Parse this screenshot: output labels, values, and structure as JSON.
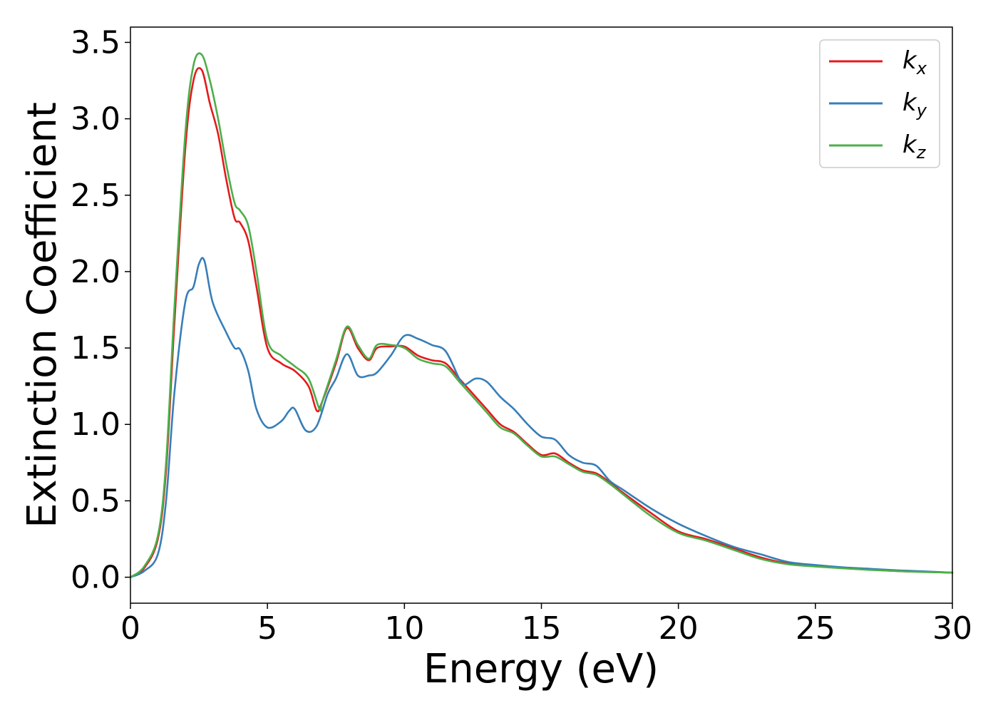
{
  "chart_data": {
    "type": "line",
    "title": "",
    "xlabel": "Energy (eV)",
    "ylabel": "Extinction Coefficient",
    "xlim": [
      0,
      30
    ],
    "ylim": [
      -0.17,
      3.6
    ],
    "xticks": [
      0,
      5,
      10,
      15,
      20,
      25,
      30
    ],
    "xtick_labels": [
      "0",
      "5",
      "10",
      "15",
      "20",
      "25",
      "30"
    ],
    "yticks": [
      0.0,
      0.5,
      1.0,
      1.5,
      2.0,
      2.5,
      3.0,
      3.5
    ],
    "ytick_labels": [
      "0.0",
      "0.5",
      "1.0",
      "1.5",
      "2.0",
      "2.5",
      "3.0",
      "3.5"
    ],
    "grid": false,
    "legend_position": "top-right",
    "series": [
      {
        "name": "kx",
        "label_base": "k",
        "label_sub": "x",
        "color": "#e41a1c",
        "x": [
          0,
          0.5,
          1.0,
          1.3,
          1.6,
          2.0,
          2.3,
          2.6,
          2.9,
          3.2,
          3.5,
          3.8,
          4.0,
          4.3,
          4.6,
          5.0,
          5.5,
          6.0,
          6.5,
          6.8,
          7.0,
          7.5,
          7.9,
          8.3,
          8.7,
          9.0,
          9.5,
          10.0,
          10.5,
          11.0,
          11.5,
          12.0,
          12.5,
          13.0,
          13.5,
          14.0,
          14.5,
          15.0,
          15.5,
          16.0,
          16.5,
          17.0,
          17.5,
          18.0,
          19.0,
          20.0,
          21.0,
          22.0,
          23.0,
          24.0,
          25.0,
          26.0,
          27.0,
          28.0,
          29.0,
          30.0
        ],
        "y": [
          0.0,
          0.06,
          0.25,
          0.7,
          1.65,
          2.8,
          3.25,
          3.32,
          3.1,
          2.9,
          2.6,
          2.35,
          2.32,
          2.2,
          1.9,
          1.5,
          1.4,
          1.35,
          1.25,
          1.09,
          1.15,
          1.4,
          1.63,
          1.5,
          1.42,
          1.5,
          1.51,
          1.51,
          1.45,
          1.42,
          1.4,
          1.3,
          1.2,
          1.1,
          1.0,
          0.95,
          0.87,
          0.8,
          0.81,
          0.75,
          0.7,
          0.68,
          0.62,
          0.55,
          0.42,
          0.3,
          0.25,
          0.19,
          0.13,
          0.09,
          0.075,
          0.06,
          0.05,
          0.04,
          0.035,
          0.03
        ]
      },
      {
        "name": "ky",
        "label_base": "k",
        "label_sub": "y",
        "color": "#377eb8",
        "x": [
          0,
          0.5,
          1.0,
          1.3,
          1.6,
          2.0,
          2.3,
          2.5,
          2.7,
          3.0,
          3.5,
          3.8,
          4.0,
          4.3,
          4.6,
          5.0,
          5.5,
          5.8,
          6.0,
          6.4,
          6.8,
          7.2,
          7.5,
          7.9,
          8.3,
          8.7,
          9.0,
          9.5,
          10.0,
          10.5,
          11.0,
          11.5,
          12.0,
          12.2,
          12.6,
          13.0,
          13.5,
          14.0,
          14.5,
          15.0,
          15.5,
          16.0,
          16.5,
          17.0,
          17.5,
          18.0,
          19.0,
          20.0,
          21.0,
          22.0,
          23.0,
          24.0,
          25.0,
          26.0,
          27.0,
          28.0,
          29.0,
          30.0
        ],
        "y": [
          0.0,
          0.04,
          0.15,
          0.5,
          1.2,
          1.8,
          1.9,
          2.05,
          2.07,
          1.8,
          1.6,
          1.5,
          1.49,
          1.35,
          1.1,
          0.98,
          1.02,
          1.09,
          1.1,
          0.96,
          0.99,
          1.2,
          1.3,
          1.46,
          1.32,
          1.32,
          1.34,
          1.45,
          1.58,
          1.56,
          1.52,
          1.48,
          1.3,
          1.26,
          1.3,
          1.28,
          1.18,
          1.1,
          1.0,
          0.92,
          0.9,
          0.8,
          0.75,
          0.73,
          0.63,
          0.57,
          0.45,
          0.35,
          0.27,
          0.2,
          0.15,
          0.1,
          0.08,
          0.065,
          0.055,
          0.045,
          0.038,
          0.03
        ]
      },
      {
        "name": "kz",
        "label_base": "k",
        "label_sub": "z",
        "color": "#4daf4a",
        "x": [
          0,
          0.5,
          1.0,
          1.3,
          1.6,
          2.0,
          2.3,
          2.6,
          2.9,
          3.2,
          3.5,
          3.8,
          4.0,
          4.3,
          4.6,
          5.0,
          5.5,
          6.0,
          6.5,
          6.9,
          7.0,
          7.5,
          7.9,
          8.3,
          8.7,
          9.0,
          9.5,
          10.0,
          10.5,
          11.0,
          11.5,
          12.0,
          12.5,
          13.0,
          13.5,
          14.0,
          14.5,
          15.0,
          15.5,
          16.0,
          16.5,
          17.0,
          17.5,
          18.0,
          19.0,
          20.0,
          21.0,
          22.0,
          23.0,
          24.0,
          25.0,
          26.0,
          27.0,
          28.0,
          29.0,
          30.0
        ],
        "y": [
          0.0,
          0.07,
          0.27,
          0.75,
          1.75,
          2.9,
          3.35,
          3.42,
          3.25,
          3.0,
          2.7,
          2.45,
          2.4,
          2.3,
          2.0,
          1.55,
          1.45,
          1.38,
          1.3,
          1.1,
          1.15,
          1.42,
          1.64,
          1.52,
          1.43,
          1.52,
          1.52,
          1.5,
          1.43,
          1.4,
          1.38,
          1.28,
          1.18,
          1.08,
          0.98,
          0.94,
          0.86,
          0.79,
          0.79,
          0.74,
          0.69,
          0.67,
          0.61,
          0.54,
          0.4,
          0.29,
          0.24,
          0.18,
          0.12,
          0.085,
          0.07,
          0.058,
          0.048,
          0.04,
          0.034,
          0.03
        ]
      }
    ]
  }
}
